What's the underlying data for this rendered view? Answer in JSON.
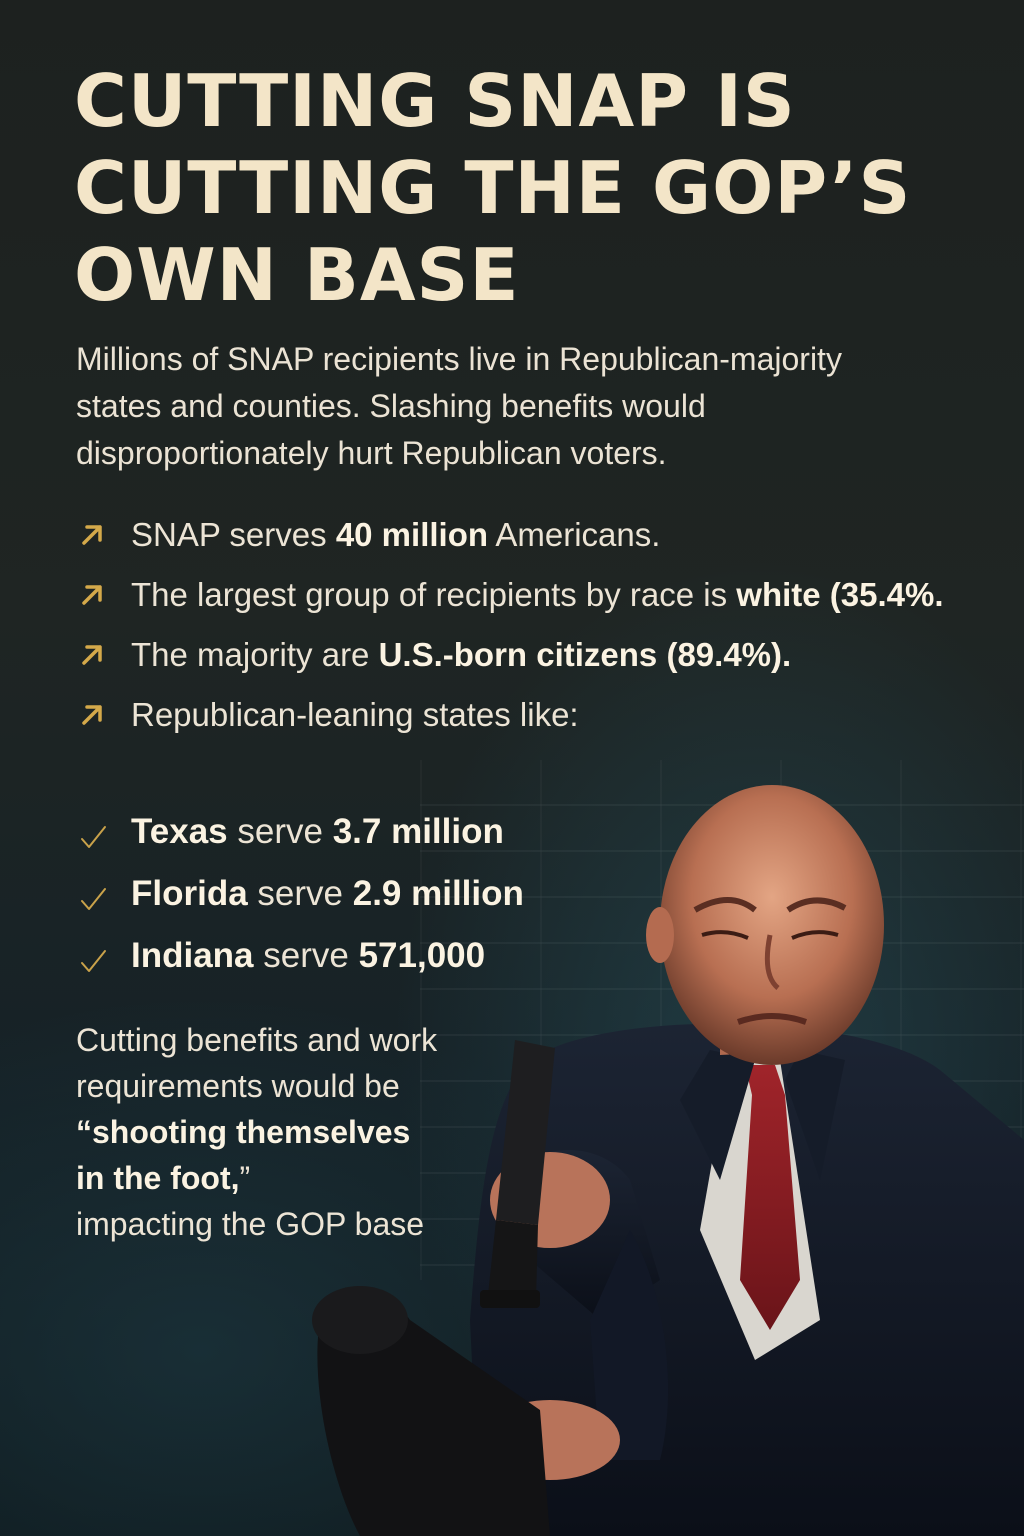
{
  "headline": {
    "line1": "CUTTING SNAP IS",
    "line2": "CUTTING THE GOP’S",
    "line3": "OWN BASE"
  },
  "intro": "Millions of SNAP recipients live in Republican-majority states and counties. Slashing benefits would disproportionately hurt Republican voters.",
  "bullets": [
    {
      "pre": "SNAP serves ",
      "bold": "40 million",
      "post": " Americans."
    },
    {
      "pre": "The largest group of recipients by race is ",
      "bold": "white (35.4%.",
      "post": ""
    },
    {
      "pre": "The majority are ",
      "bold": "U.S.-born citizens (89.4%).",
      "post": ""
    },
    {
      "pre": "Republican-leaning states like:",
      "bold": "",
      "post": ""
    }
  ],
  "states": [
    {
      "state": "Texas",
      "verb": " serve ",
      "count": "3.7 million"
    },
    {
      "state": "Florida",
      "verb": " serve ",
      "count": "2.9 million"
    },
    {
      "state": "Indiana",
      "verb": " serve ",
      "count": "571,000"
    }
  ],
  "closing": {
    "line1": "Cutting benefits and work",
    "line2": "requirements would be",
    "quote1": "“shooting themselves",
    "quote2": "in the foot,",
    "quote2_tail": "”",
    "line5": "impacting the GOP base"
  },
  "colors": {
    "headline": "#f3e5c8",
    "bullet_icon": "#d4a94a",
    "tie": "#8e1c22",
    "background": "#1b1f1f"
  },
  "icons": {
    "bullet": "arrow-up-right-icon",
    "state": "check-icon"
  }
}
